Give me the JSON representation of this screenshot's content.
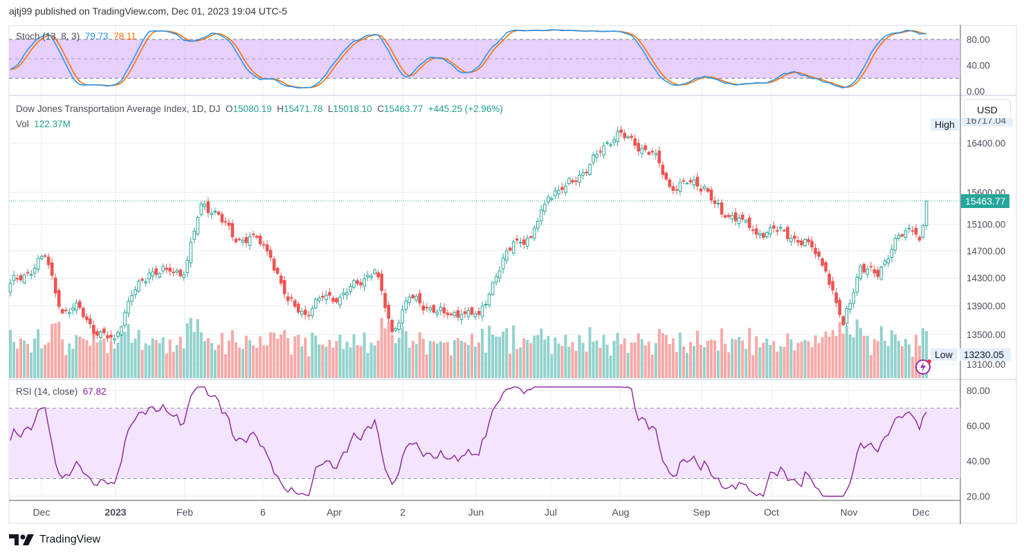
{
  "header": {
    "published": "ajtj99 published on TradingView.com, Dec 01, 2023 19:04 UTC-5"
  },
  "stoch": {
    "label": "Stoch (13, 8, 3)",
    "k_value": "79.73",
    "d_value": "78.11",
    "k_color": "#2196f3",
    "d_color": "#ff6d00",
    "axis": [
      "80.00",
      "40.00",
      "0.00"
    ]
  },
  "main": {
    "title": "Dow Jones Transportation Average Index, 1D, DJ",
    "o_label": "O",
    "o": "15080.19",
    "h_label": "H",
    "h": "15471.78",
    "l_label": "L",
    "l": "15018.10",
    "c_label": "C",
    "c": "15463.77",
    "change": "+445.25 (+2.96%)",
    "vol_label": "Vol",
    "vol": "122.37M",
    "currency": "USD",
    "high_label": "High",
    "high_value": "16717.04",
    "low_label": "Low",
    "low_value": "13230.05",
    "last_price": "15463.77"
  },
  "rsi": {
    "label": "RSI (14, close)",
    "value": "67.82",
    "color": "#8e1e9e",
    "axis": [
      "80.00",
      "60.00",
      "40.00",
      "20.00"
    ]
  },
  "time_axis": [
    "Dec",
    "2023",
    "Feb",
    "6",
    "Apr",
    "2",
    "Jun",
    "Jul",
    "Aug",
    "Sep",
    "Oct",
    "Nov",
    "Dec"
  ],
  "footer": {
    "brand": "TradingView"
  },
  "chart_data": {
    "type": "candlestick",
    "title": "Dow Jones Transportation Average Index, 1D, DJ",
    "scale": "log",
    "price_ticks": [
      16400,
      15600,
      15100,
      14700,
      14300,
      13900,
      13500,
      13100
    ],
    "price_tick_labels": [
      "16400.00",
      "15600.00",
      "15100.00",
      "14700.00",
      "14300.00",
      "13900.00",
      "13500.00",
      "13100.00"
    ],
    "weekly_close_anchors": [
      14222,
      14372,
      14627,
      13800,
      13877,
      13492,
      13445,
      14050,
      14372,
      14423,
      14350,
      15418,
      15256,
      14835,
      14950,
      14600,
      13974,
      13780,
      14024,
      14024,
      14222,
      14420,
      13540,
      14024,
      13880,
      13800,
      13780,
      13780,
      14322,
      14835,
      14900,
      15526,
      15700,
      15913,
      16252,
      16599,
      16366,
      16250,
      15691,
      15746,
      15691,
      15256,
      15200,
      14950,
      15043,
      14886,
      14835,
      14400,
      13635,
      14473,
      14322,
      14886,
      15000
    ],
    "final_closes": [
      14950,
      14860,
      15080.19
    ],
    "last_candle": {
      "open": 15080.19,
      "high": 15471.78,
      "low": 15018.1,
      "close": 15463.77
    },
    "period_high": 16717.04,
    "period_low": 13230.05,
    "up_color": "#26a69a",
    "down_color": "#ef5350"
  }
}
